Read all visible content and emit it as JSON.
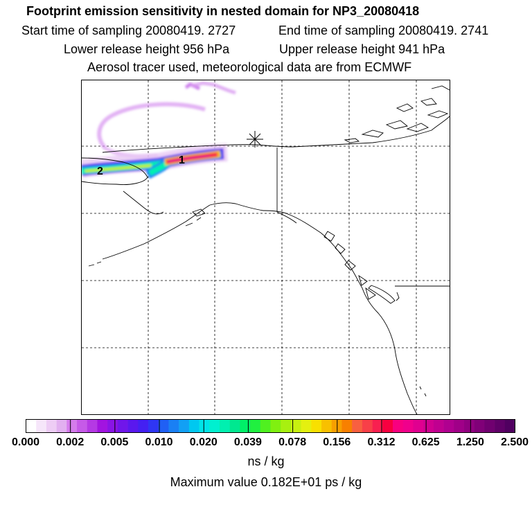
{
  "title": {
    "line1": "Footprint emission sensitivity in nested domain for NP3_20080418",
    "start": "Start time of sampling 20080419.  2727",
    "end": "End time of sampling 20080419.  2741",
    "lower": "Lower release height  956 hPa",
    "upper": "Upper release height  941 hPa",
    "line4": "Aerosol tracer used, meteorological data are from ECMWF"
  },
  "map": {
    "labels": [
      "1",
      "2"
    ],
    "receptor_marker": "asterisk"
  },
  "colorbar": {
    "ticks": [
      "0.000",
      "0.002",
      "0.005",
      "0.010",
      "0.020",
      "0.039",
      "0.078",
      "0.156",
      "0.312",
      "0.625",
      "1.250",
      "2.500"
    ],
    "colors": [
      "#ffffff",
      "#f6e6fa",
      "#eecdf5",
      "#e2b0f0",
      "#d57cec",
      "#c65ae8",
      "#b539e4",
      "#a214e0",
      "#8a14e6",
      "#7016ea",
      "#5a18ee",
      "#4420f2",
      "#2f36f4",
      "#2060f4",
      "#1a80f4",
      "#12a0f4",
      "#00c8f0",
      "#00e4e8",
      "#00f0d0",
      "#00f0b0",
      "#00e890",
      "#00f068",
      "#20f040",
      "#50f020",
      "#80f010",
      "#a8f010",
      "#c8f010",
      "#e4f010",
      "#f8e000",
      "#f8c000",
      "#f8a000",
      "#f88000",
      "#f86040",
      "#f84048",
      "#f82050",
      "#f80040",
      "#f80080",
      "#f0008c",
      "#e00090",
      "#d00090",
      "#c00090",
      "#b00090",
      "#a00088",
      "#900080",
      "#800078",
      "#700070",
      "#600068",
      "#500060"
    ],
    "unit": "ns / kg"
  },
  "max_value": "Maximum value  0.182E+01 ps / kg"
}
